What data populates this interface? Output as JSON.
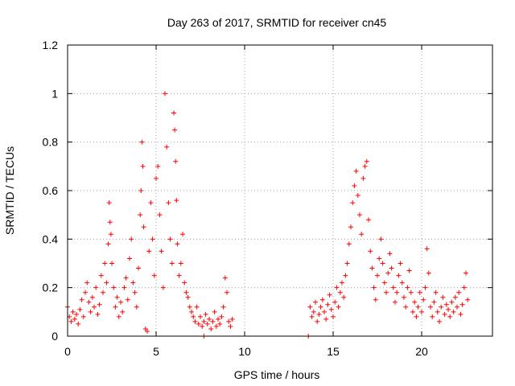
{
  "chart_data": {
    "type": "scatter",
    "title": "Day 263 of 2017, SRMTID for receiver cn45",
    "xlabel": "GPS time / hours",
    "ylabel": "SRMTID / TECUs",
    "xlim": [
      0,
      24
    ],
    "ylim": [
      0,
      1.2
    ],
    "xticks": [
      0,
      5,
      10,
      15,
      20
    ],
    "xtick_labels": [
      "0",
      "5",
      "10",
      "15",
      "20"
    ],
    "yticks": [
      0,
      0.2,
      0.4,
      0.6,
      0.8,
      1,
      1.2
    ],
    "ytick_labels": [
      "0",
      "0.2",
      "0.4",
      "0.6",
      "0.8",
      "1",
      "1.2"
    ],
    "grid": true,
    "legend": "none",
    "series": [
      {
        "name": "SRMTID",
        "color": "#ff0000",
        "marker": "plus",
        "points": [
          [
            0.0,
            0.12
          ],
          [
            0.1,
            0.08
          ],
          [
            0.2,
            0.06
          ],
          [
            0.3,
            0.1
          ],
          [
            0.4,
            0.07
          ],
          [
            0.5,
            0.09
          ],
          [
            0.6,
            0.05
          ],
          [
            0.7,
            0.11
          ],
          [
            0.8,
            0.15
          ],
          [
            0.9,
            0.08
          ],
          [
            1.0,
            0.18
          ],
          [
            1.1,
            0.22
          ],
          [
            1.2,
            0.14
          ],
          [
            1.3,
            0.1
          ],
          [
            1.4,
            0.16
          ],
          [
            1.5,
            0.12
          ],
          [
            1.6,
            0.2
          ],
          [
            1.7,
            0.09
          ],
          [
            1.8,
            0.13
          ],
          [
            1.9,
            0.25
          ],
          [
            2.0,
            0.18
          ],
          [
            2.1,
            0.3
          ],
          [
            2.2,
            0.22
          ],
          [
            2.3,
            0.38
          ],
          [
            2.35,
            0.55
          ],
          [
            2.4,
            0.47
          ],
          [
            2.45,
            0.42
          ],
          [
            2.5,
            0.3
          ],
          [
            2.6,
            0.2
          ],
          [
            2.7,
            0.12
          ],
          [
            2.8,
            0.16
          ],
          [
            2.9,
            0.08
          ],
          [
            3.0,
            0.14
          ],
          [
            3.1,
            0.1
          ],
          [
            3.2,
            0.2
          ],
          [
            3.3,
            0.24
          ],
          [
            3.4,
            0.15
          ],
          [
            3.5,
            0.32
          ],
          [
            3.6,
            0.4
          ],
          [
            3.7,
            0.22
          ],
          [
            3.8,
            0.18
          ],
          [
            3.9,
            0.12
          ],
          [
            4.0,
            0.28
          ],
          [
            4.1,
            0.5
          ],
          [
            4.15,
            0.6
          ],
          [
            4.2,
            0.8
          ],
          [
            4.25,
            0.7
          ],
          [
            4.3,
            0.45
          ],
          [
            4.4,
            0.03
          ],
          [
            4.5,
            0.02
          ],
          [
            4.6,
            0.35
          ],
          [
            4.7,
            0.55
          ],
          [
            4.8,
            0.4
          ],
          [
            4.9,
            0.25
          ],
          [
            5.0,
            0.65
          ],
          [
            5.1,
            0.7
          ],
          [
            5.2,
            0.5
          ],
          [
            5.3,
            0.35
          ],
          [
            5.4,
            0.2
          ],
          [
            5.5,
            1.0
          ],
          [
            5.6,
            0.78
          ],
          [
            5.7,
            0.55
          ],
          [
            5.8,
            0.4
          ],
          [
            5.9,
            0.3
          ],
          [
            6.0,
            0.92
          ],
          [
            6.05,
            0.85
          ],
          [
            6.1,
            0.72
          ],
          [
            6.15,
            0.56
          ],
          [
            6.2,
            0.38
          ],
          [
            6.3,
            0.25
          ],
          [
            6.4,
            0.3
          ],
          [
            6.5,
            0.42
          ],
          [
            6.6,
            0.22
          ],
          [
            6.7,
            0.18
          ],
          [
            6.8,
            0.16
          ],
          [
            6.9,
            0.12
          ],
          [
            7.0,
            0.1
          ],
          [
            7.1,
            0.08
          ],
          [
            7.2,
            0.06
          ],
          [
            7.3,
            0.12
          ],
          [
            7.4,
            0.05
          ],
          [
            7.5,
            0.08
          ],
          [
            7.6,
            0.04
          ],
          [
            7.7,
            0.06
          ],
          [
            7.8,
            0.09
          ],
          [
            7.9,
            0.05
          ],
          [
            8.0,
            0.07
          ],
          [
            8.1,
            0.03
          ],
          [
            8.2,
            0.06
          ],
          [
            8.3,
            0.1
          ],
          [
            8.4,
            0.04
          ],
          [
            8.5,
            0.07
          ],
          [
            8.6,
            0.05
          ],
          [
            8.7,
            0.08
          ],
          [
            8.8,
            0.12
          ],
          [
            8.9,
            0.24
          ],
          [
            9.0,
            0.18
          ],
          [
            9.1,
            0.06
          ],
          [
            9.2,
            0.04
          ],
          [
            9.3,
            0.07
          ],
          [
            7.7,
            0.0
          ],
          [
            13.6,
            0.0
          ],
          [
            13.7,
            0.12
          ],
          [
            13.8,
            0.08
          ],
          [
            13.9,
            0.1
          ],
          [
            14.0,
            0.14
          ],
          [
            14.1,
            0.06
          ],
          [
            14.2,
            0.09
          ],
          [
            14.3,
            0.12
          ],
          [
            14.4,
            0.15
          ],
          [
            14.5,
            0.1
          ],
          [
            14.6,
            0.07
          ],
          [
            14.7,
            0.13
          ],
          [
            14.8,
            0.17
          ],
          [
            14.9,
            0.11
          ],
          [
            15.0,
            0.08
          ],
          [
            15.1,
            0.14
          ],
          [
            15.2,
            0.2
          ],
          [
            15.3,
            0.12
          ],
          [
            15.4,
            0.18
          ],
          [
            15.5,
            0.22
          ],
          [
            15.6,
            0.16
          ],
          [
            15.7,
            0.25
          ],
          [
            15.8,
            0.3
          ],
          [
            15.9,
            0.38
          ],
          [
            16.0,
            0.45
          ],
          [
            16.1,
            0.55
          ],
          [
            16.2,
            0.62
          ],
          [
            16.3,
            0.68
          ],
          [
            16.4,
            0.58
          ],
          [
            16.5,
            0.5
          ],
          [
            16.6,
            0.42
          ],
          [
            16.7,
            0.65
          ],
          [
            16.8,
            0.7
          ],
          [
            16.9,
            0.72
          ],
          [
            17.0,
            0.48
          ],
          [
            17.1,
            0.35
          ],
          [
            17.2,
            0.28
          ],
          [
            17.3,
            0.2
          ],
          [
            17.4,
            0.15
          ],
          [
            17.5,
            0.25
          ],
          [
            17.6,
            0.32
          ],
          [
            17.7,
            0.4
          ],
          [
            17.8,
            0.3
          ],
          [
            17.9,
            0.22
          ],
          [
            18.0,
            0.18
          ],
          [
            18.1,
            0.26
          ],
          [
            18.2,
            0.34
          ],
          [
            18.3,
            0.28
          ],
          [
            18.4,
            0.2
          ],
          [
            18.5,
            0.14
          ],
          [
            18.6,
            0.18
          ],
          [
            18.7,
            0.25
          ],
          [
            18.8,
            0.3
          ],
          [
            18.9,
            0.22
          ],
          [
            19.0,
            0.16
          ],
          [
            19.1,
            0.12
          ],
          [
            19.2,
            0.2
          ],
          [
            19.3,
            0.27
          ],
          [
            19.4,
            0.18
          ],
          [
            19.5,
            0.1
          ],
          [
            19.6,
            0.14
          ],
          [
            19.7,
            0.08
          ],
          [
            19.8,
            0.12
          ],
          [
            19.9,
            0.18
          ],
          [
            20.0,
            0.1
          ],
          [
            20.1,
            0.15
          ],
          [
            20.2,
            0.2
          ],
          [
            20.3,
            0.36
          ],
          [
            20.4,
            0.26
          ],
          [
            20.5,
            0.12
          ],
          [
            20.6,
            0.08
          ],
          [
            20.7,
            0.14
          ],
          [
            20.8,
            0.18
          ],
          [
            20.9,
            0.1
          ],
          [
            21.0,
            0.06
          ],
          [
            21.1,
            0.12
          ],
          [
            21.2,
            0.16
          ],
          [
            21.3,
            0.09
          ],
          [
            21.4,
            0.13
          ],
          [
            21.5,
            0.11
          ],
          [
            21.6,
            0.08
          ],
          [
            21.7,
            0.14
          ],
          [
            21.8,
            0.1
          ],
          [
            21.9,
            0.16
          ],
          [
            22.0,
            0.12
          ],
          [
            22.1,
            0.18
          ],
          [
            22.2,
            0.09
          ],
          [
            22.3,
            0.13
          ],
          [
            22.4,
            0.2
          ],
          [
            22.5,
            0.26
          ],
          [
            22.6,
            0.15
          ]
        ]
      }
    ]
  }
}
